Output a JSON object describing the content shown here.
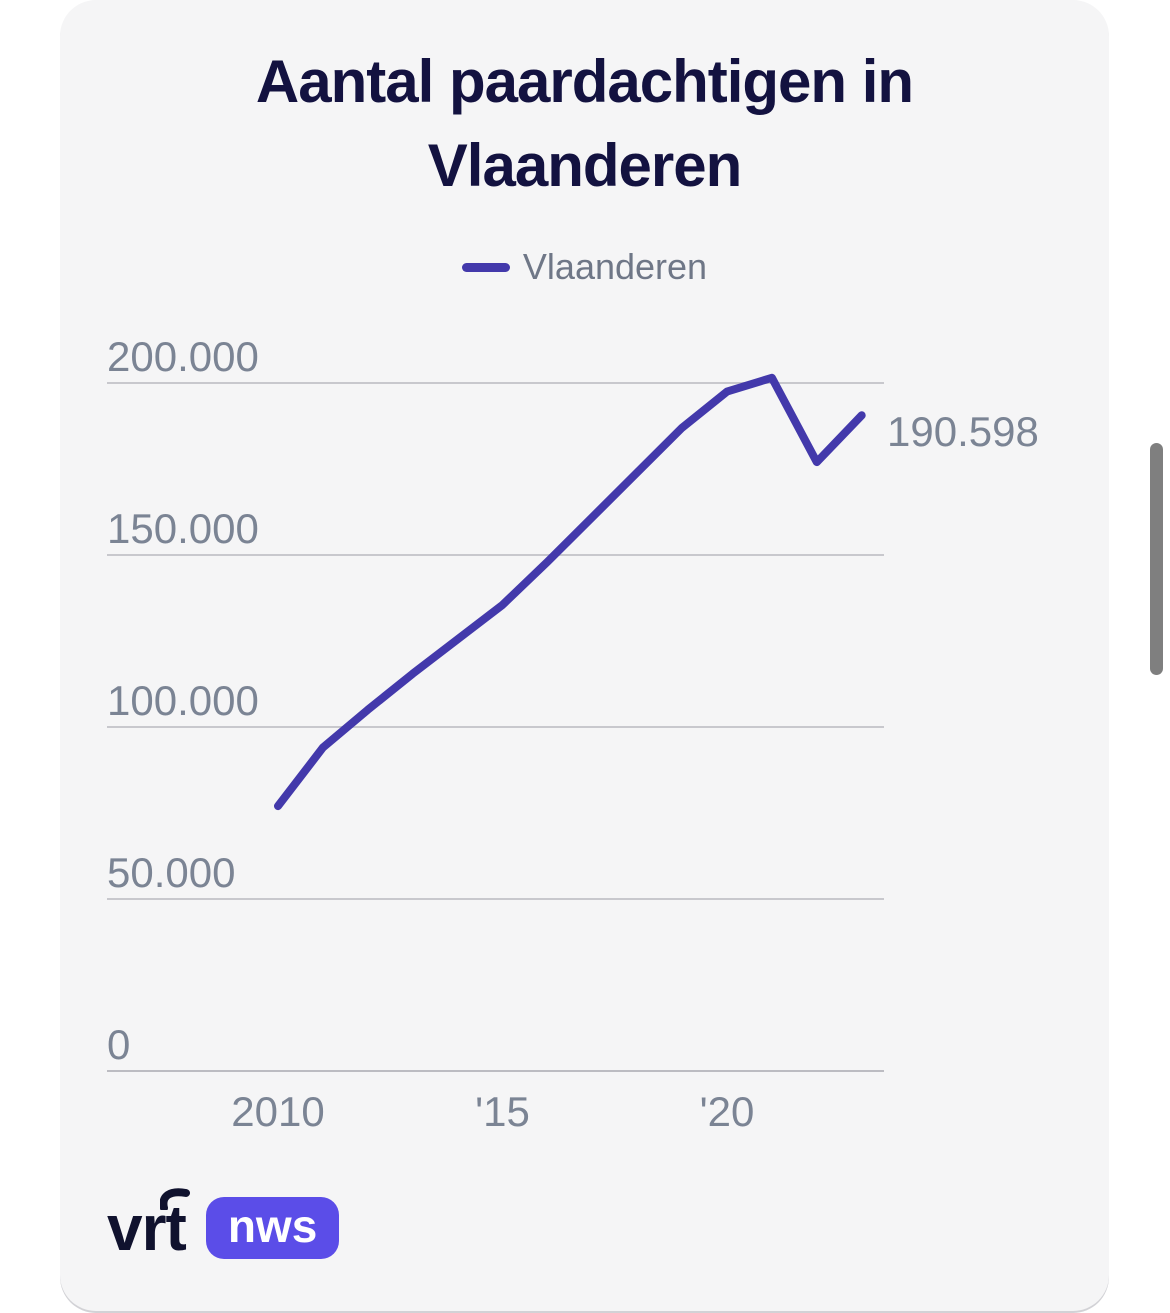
{
  "header": {
    "title_lines": [
      "Aantal paardachtigen in",
      "Vlaanderen"
    ]
  },
  "legend": {
    "label": "Vlaanderen",
    "color": "#4339ab"
  },
  "chart_data": {
    "type": "line",
    "title": "Aantal paardachtigen in Vlaanderen",
    "series": [
      {
        "name": "Vlaanderen",
        "x": [
          2010,
          2011,
          2012,
          2013,
          2014,
          2015,
          2016,
          2017,
          2018,
          2019,
          2020,
          2021,
          2022,
          2023
        ],
        "values": [
          77000,
          94000,
          105000,
          115500,
          125500,
          135500,
          148000,
          161000,
          174000,
          187000,
          197500,
          201500,
          177000,
          190598
        ]
      }
    ],
    "x_ticks": [
      {
        "x": 2010,
        "label": "2010"
      },
      {
        "x": 2015,
        "label": "'15"
      },
      {
        "x": 2020,
        "label": "'20"
      }
    ],
    "y_ticks": [
      {
        "value": 0,
        "label": "0"
      },
      {
        "value": 50000,
        "label": "50.000"
      },
      {
        "value": 100000,
        "label": "100.000"
      },
      {
        "value": 150000,
        "label": "150.000"
      },
      {
        "value": 200000,
        "label": "200.000"
      }
    ],
    "ylim": [
      0,
      215000
    ],
    "grid": true,
    "legend_position": "top",
    "line_color": "#4339ab",
    "gridline_color": "#c8c8cd",
    "baseline_color": "#bcbcc2",
    "axis_text_color": "#7b8494",
    "end_label": "190.598"
  },
  "footer": {
    "vrt_label": "vrt",
    "nws_label": "nws",
    "badge_color": "#5b4de8"
  }
}
